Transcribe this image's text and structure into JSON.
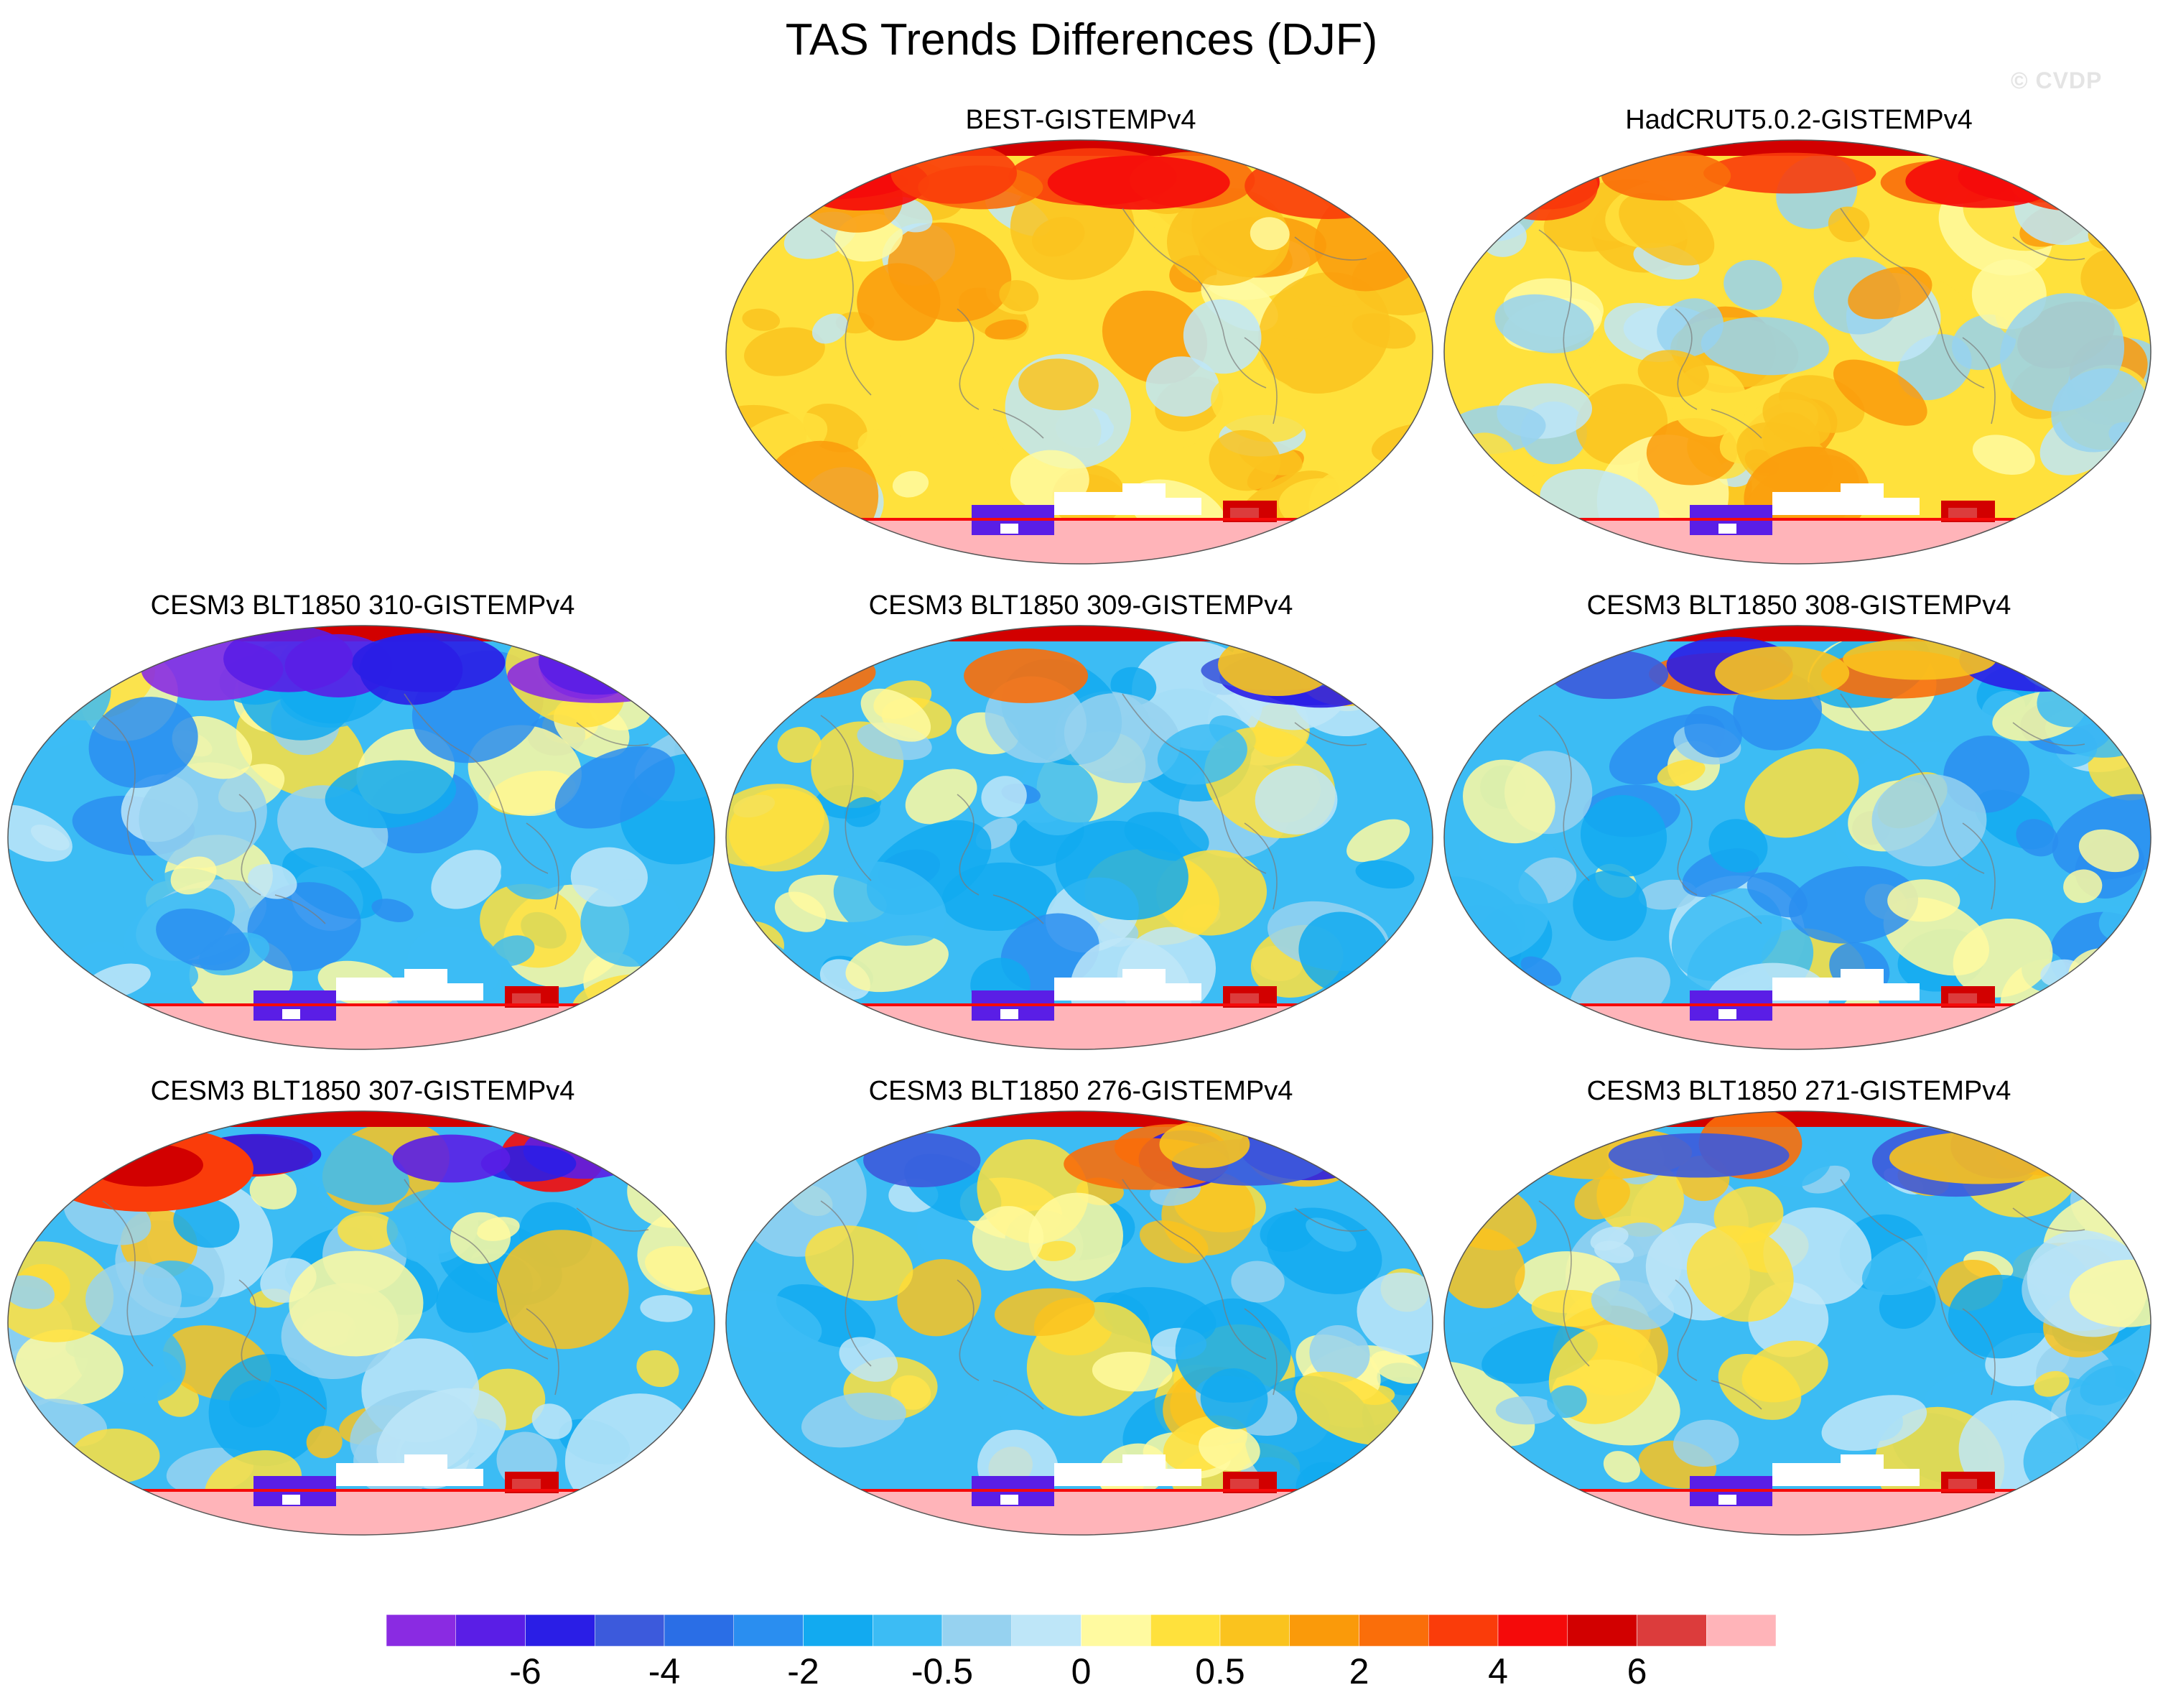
{
  "figure": {
    "title": "TAS Trends Differences (DJF)",
    "watermark": "© CVDP"
  },
  "chart_data": {
    "type": "heatmap",
    "title": "TAS Trends Differences (DJF)",
    "projection": "global ellipse (Robinson-like), Pacific-centered",
    "variable": "surface air temperature trend difference",
    "panels": [
      {
        "title": "BEST-GISTEMPv4",
        "regime": "warm",
        "arctic": "warm"
      },
      {
        "title": "HadCRUT5.0.2-GISTEMPv4",
        "regime": "warm-mixed",
        "arctic": "warm"
      },
      {
        "title": "CESM3 BLT1850 310-GISTEMPv4",
        "regime": "cool",
        "arctic": "cold"
      },
      {
        "title": "CESM3 BLT1850 309-GISTEMPv4",
        "regime": "cool",
        "arctic": "mixed"
      },
      {
        "title": "CESM3 BLT1850 308-GISTEMPv4",
        "regime": "cool",
        "arctic": "mixed"
      },
      {
        "title": "CESM3 BLT1850 307-GISTEMPv4",
        "regime": "cool-mixed",
        "arctic": "warm-west"
      },
      {
        "title": "CESM3 BLT1850 276-GISTEMPv4",
        "regime": "cool-mixed",
        "arctic": "mixed"
      },
      {
        "title": "CESM3 BLT1850 271-GISTEMPv4",
        "regime": "cool-mixed",
        "arctic": "mixed"
      }
    ],
    "colorbar": {
      "colors": [
        "#8a2be2",
        "#5a1ee6",
        "#2a1ee6",
        "#3c5adc",
        "#2a6ee6",
        "#2a8ef0",
        "#12aaf0",
        "#3cbcf4",
        "#96d2f0",
        "#bee6f8",
        "#fffaa0",
        "#ffe13c",
        "#fac31e",
        "#fa9a0a",
        "#fa6e0a",
        "#fa3c0a",
        "#f50a0a",
        "#d20000",
        "#dc3c3c",
        "#ffb4b9"
      ],
      "tick_labels": [
        "-6",
        "-4",
        "-2",
        "-0.5",
        "0",
        "0.5",
        "2",
        "4",
        "6"
      ],
      "tick_boundary_index": [
        2,
        4,
        6,
        8,
        10,
        12,
        14,
        16,
        18
      ]
    }
  }
}
